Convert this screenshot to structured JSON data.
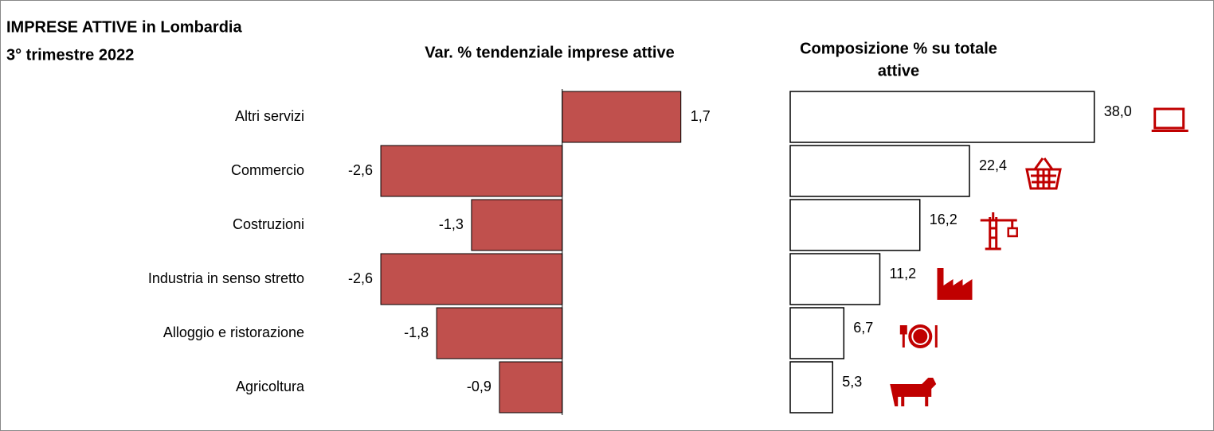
{
  "title": [
    "IMPRESE ATTIVE in Lombardia",
    "3° trimestre 2022"
  ],
  "chart_data": [
    {
      "type": "bar",
      "orientation": "horizontal",
      "title": "Var. % tendenziale imprese attive",
      "categories": [
        "Altri servizi",
        "Commercio",
        "Costruzioni",
        "Industria in senso stretto",
        "Alloggio e ristorazione",
        "Agricoltura"
      ],
      "values": [
        1.7,
        -2.6,
        -1.3,
        -2.6,
        -1.8,
        -0.9
      ],
      "value_labels": [
        "1,7",
        "-2,6",
        "-1,3",
        "-2,6",
        "-1,8",
        "-0,9"
      ],
      "color": "#c0504d",
      "xlim": [
        -3,
        2
      ]
    },
    {
      "type": "bar",
      "orientation": "horizontal",
      "title": [
        "Composizione % su totale",
        "attive"
      ],
      "values": [
        38.0,
        22.4,
        16.2,
        11.2,
        6.7,
        5.3
      ],
      "value_labels": [
        "38,0",
        "22,4",
        "16,2",
        "11,2",
        "6,7",
        "5,3"
      ],
      "color": "#ffffff",
      "icon_color": "#c00000",
      "xlim": [
        0,
        45
      ]
    }
  ]
}
